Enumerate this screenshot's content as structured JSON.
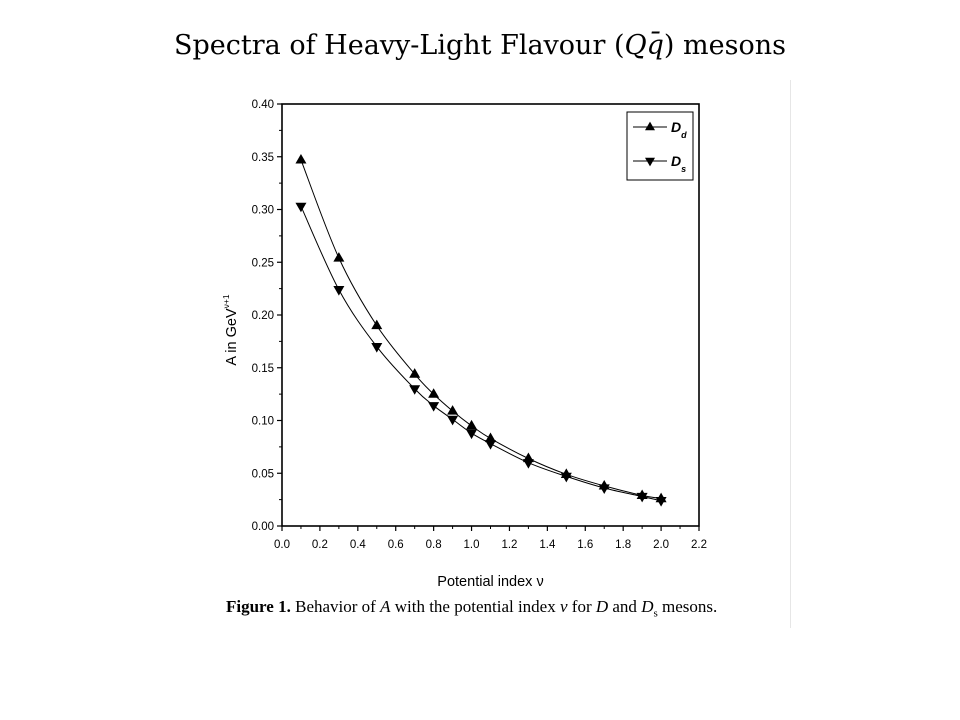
{
  "header": {
    "title_prefix": "Spectra of Heavy-Light Flavour (",
    "title_Q": "Q",
    "title_q": "q",
    "title_suffix": ") mesons"
  },
  "caption": {
    "label": "Figure 1.",
    "text_1": "Behavior of ",
    "var_A": "A",
    "text_2": " with the potential index ",
    "var_nu": "ν",
    "text_3": " for ",
    "var_D": "D",
    "text_4": " and ",
    "var_Ds": "D",
    "var_Ds_sub": "s",
    "text_5": " mesons."
  },
  "chart_data": {
    "type": "scatter",
    "xlabel": "Potential index ν",
    "ylabel": "A in GeV",
    "ylabel_sup": "ν+1",
    "xlim": [
      0.0,
      2.2
    ],
    "ylim": [
      0.0,
      0.4
    ],
    "xticks": [
      "0.0",
      "0.2",
      "0.4",
      "0.6",
      "0.8",
      "1.0",
      "1.2",
      "1.4",
      "1.6",
      "1.8",
      "2.0",
      "2.2"
    ],
    "yticks": [
      "0.00",
      "0.05",
      "0.10",
      "0.15",
      "0.20",
      "0.25",
      "0.30",
      "0.35",
      "0.40"
    ],
    "grid": false,
    "legend_position": "top-right",
    "x": [
      0.1,
      0.3,
      0.5,
      0.7,
      0.8,
      0.9,
      1.0,
      1.1,
      1.3,
      1.5,
      1.7,
      1.9,
      2.0
    ],
    "series": [
      {
        "name": "D",
        "name_sub": "d",
        "marker": "triangle-up",
        "color": "#000000",
        "values": [
          0.347,
          0.254,
          0.19,
          0.144,
          0.125,
          0.109,
          0.095,
          0.083,
          0.064,
          0.049,
          0.038,
          0.029,
          0.026
        ]
      },
      {
        "name": "D",
        "name_sub": "s",
        "marker": "triangle-down",
        "color": "#000000",
        "values": [
          0.303,
          0.224,
          0.17,
          0.13,
          0.114,
          0.101,
          0.088,
          0.078,
          0.06,
          0.047,
          0.036,
          0.028,
          0.024
        ]
      }
    ]
  }
}
